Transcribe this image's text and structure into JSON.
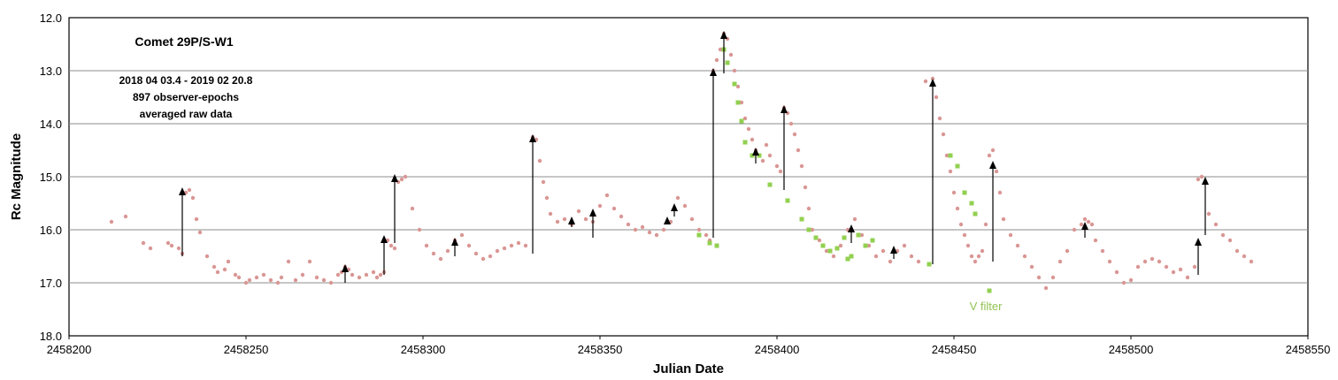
{
  "chart_data": {
    "type": "scatter",
    "xlabel": "Julian Date",
    "ylabel": "Rc Magnitude",
    "xlim": [
      2458200,
      2458550
    ],
    "ylim": [
      12.0,
      18.0
    ],
    "y_inverted": true,
    "grid": "horizontal",
    "x_ticks": [
      "2458200",
      "2458250",
      "2458300",
      "2458350",
      "2458400",
      "2458450",
      "2458500",
      "2458550"
    ],
    "y_ticks": [
      "12.0",
      "13.0",
      "14.0",
      "15.0",
      "16.0",
      "17.0",
      "18.0"
    ],
    "annotations": {
      "title": "Comet 29P/S-W1",
      "line1": "2018 04 03.4 -  2019 02 20.8",
      "line2": "897 observer-epochs",
      "line3": "averaged raw data",
      "vfilter": "V filter"
    },
    "colors": {
      "rc_points": "#d99694",
      "v_points": "#92d050",
      "arrows": "#000000"
    },
    "series": [
      {
        "label_shown": false,
        "marker": "dot",
        "x": [
          2458212,
          2458216,
          2458221,
          2458223,
          2458228,
          2458229,
          2458231,
          2458232,
          2458233,
          2458234,
          2458235,
          2458236,
          2458237,
          2458239,
          2458241,
          2458242,
          2458244,
          2458245,
          2458247,
          2458248,
          2458250,
          2458251,
          2458253,
          2458255,
          2458257,
          2458259,
          2458260,
          2458262,
          2458264,
          2458266,
          2458268,
          2458270,
          2458272,
          2458274,
          2458276,
          2458277,
          2458278,
          2458279,
          2458280,
          2458282,
          2458284,
          2458286,
          2458287,
          2458288,
          2458289,
          2458290,
          2458291,
          2458292,
          2458293,
          2458294,
          2458295,
          2458297,
          2458299,
          2458301,
          2458303,
          2458305,
          2458307,
          2458309,
          2458311,
          2458313,
          2458315,
          2458317,
          2458319,
          2458321,
          2458323,
          2458325,
          2458327,
          2458329,
          2458331,
          2458332,
          2458333,
          2458334,
          2458335,
          2458336,
          2458338,
          2458340,
          2458342,
          2458344,
          2458346,
          2458348,
          2458350,
          2458352,
          2458354,
          2458356,
          2458358,
          2458360,
          2458362,
          2458364,
          2458366,
          2458368,
          2458370,
          2458372,
          2458374,
          2458376,
          2458378,
          2458380,
          2458381,
          2458382,
          2458383,
          2458384,
          2458385,
          2458386,
          2458387,
          2458388,
          2458389,
          2458390,
          2458391,
          2458392,
          2458393,
          2458394,
          2458395,
          2458396,
          2458397,
          2458398,
          2458400,
          2458401,
          2458402,
          2458403,
          2458404,
          2458405,
          2458406,
          2458407,
          2458408,
          2458409,
          2458410,
          2458412,
          2458414,
          2458416,
          2458418,
          2458420,
          2458422,
          2458424,
          2458426,
          2458428,
          2458430,
          2458432,
          2458434,
          2458436,
          2458438,
          2458440,
          2458442,
          2458444,
          2458445,
          2458446,
          2458447,
          2458448,
          2458449,
          2458450,
          2458451,
          2458452,
          2458453,
          2458454,
          2458455,
          2458456,
          2458457,
          2458458,
          2458459,
          2458460,
          2458461,
          2458462,
          2458463,
          2458464,
          2458466,
          2458468,
          2458470,
          2458472,
          2458474,
          2458476,
          2458478,
          2458480,
          2458482,
          2458484,
          2458486,
          2458487,
          2458488,
          2458489,
          2458490,
          2458492,
          2458494,
          2458496,
          2458498,
          2458500,
          2458502,
          2458504,
          2458506,
          2458508,
          2458510,
          2458512,
          2458514,
          2458516,
          2458518,
          2458519,
          2458520,
          2458521,
          2458522,
          2458524,
          2458526,
          2458528,
          2458530,
          2458532,
          2458534
        ],
        "y": [
          15.85,
          15.75,
          16.25,
          16.35,
          16.25,
          16.3,
          16.35,
          16.45,
          15.3,
          15.25,
          15.4,
          15.8,
          16.05,
          16.5,
          16.7,
          16.8,
          16.75,
          16.6,
          16.85,
          16.9,
          17.0,
          16.95,
          16.9,
          16.85,
          16.95,
          17.0,
          16.9,
          16.6,
          16.95,
          16.85,
          16.6,
          16.9,
          16.95,
          17.0,
          16.85,
          16.8,
          16.7,
          16.75,
          16.85,
          16.9,
          16.85,
          16.8,
          16.9,
          16.85,
          16.8,
          16.2,
          16.3,
          16.35,
          15.1,
          15.05,
          15.0,
          15.6,
          16.0,
          16.3,
          16.45,
          16.55,
          16.4,
          16.2,
          16.1,
          16.3,
          16.45,
          16.55,
          16.5,
          16.4,
          16.35,
          16.3,
          16.25,
          16.3,
          14.25,
          14.3,
          14.7,
          15.1,
          15.4,
          15.7,
          15.85,
          15.8,
          15.9,
          15.65,
          15.8,
          15.85,
          15.55,
          15.35,
          15.6,
          15.75,
          15.9,
          16.0,
          15.95,
          16.05,
          16.1,
          16.0,
          15.85,
          15.4,
          15.55,
          15.8,
          16.0,
          16.1,
          16.2,
          13.0,
          12.8,
          12.6,
          12.3,
          12.4,
          12.7,
          13.0,
          13.3,
          13.6,
          13.9,
          14.1,
          14.3,
          14.5,
          14.6,
          14.7,
          14.4,
          14.6,
          14.8,
          14.9,
          13.7,
          13.8,
          14.0,
          14.2,
          14.5,
          14.8,
          15.2,
          15.6,
          16.0,
          16.2,
          16.4,
          16.5,
          16.3,
          16.0,
          15.8,
          16.1,
          16.3,
          16.5,
          16.4,
          16.6,
          16.4,
          16.3,
          16.5,
          16.6,
          13.2,
          13.15,
          13.5,
          13.9,
          14.2,
          14.6,
          14.9,
          15.3,
          15.6,
          15.9,
          16.1,
          16.3,
          16.5,
          16.6,
          16.5,
          16.4,
          15.9,
          14.6,
          14.5,
          14.9,
          15.3,
          15.8,
          16.1,
          16.3,
          16.5,
          16.7,
          16.9,
          17.1,
          16.9,
          16.6,
          16.4,
          16.0,
          15.9,
          15.8,
          15.85,
          15.9,
          16.2,
          16.4,
          16.6,
          16.8,
          17.0,
          16.95,
          16.7,
          16.6,
          16.55,
          16.6,
          16.7,
          16.8,
          16.75,
          16.9,
          16.7,
          15.05,
          15.0,
          15.1,
          15.7,
          15.9,
          16.1,
          16.2,
          16.4,
          16.5,
          16.6
        ]
      },
      {
        "name": "V filter",
        "marker": "square",
        "x": [
          2458378,
          2458381,
          2458383,
          2458385,
          2458386,
          2458388,
          2458389,
          2458390,
          2458391,
          2458393,
          2458395,
          2458398,
          2458403,
          2458407,
          2458409,
          2458411,
          2458413,
          2458415,
          2458417,
          2458419,
          2458420,
          2458421,
          2458423,
          2458425,
          2458427,
          2458443,
          2458449,
          2458451,
          2458453,
          2458455,
          2458456,
          2458460
        ],
        "y": [
          16.1,
          16.25,
          16.3,
          12.6,
          12.85,
          13.25,
          13.6,
          13.95,
          14.35,
          14.6,
          14.6,
          15.15,
          15.45,
          15.8,
          16.0,
          16.15,
          16.3,
          16.4,
          16.35,
          16.15,
          16.55,
          16.5,
          16.1,
          16.3,
          16.2,
          16.65,
          14.6,
          14.8,
          15.3,
          15.5,
          15.7,
          17.15
        ]
      }
    ],
    "outbursts": [
      {
        "x": 2458232,
        "from": 16.5,
        "to": 15.2
      },
      {
        "x": 2458278,
        "from": 17.0,
        "to": 16.65
      },
      {
        "x": 2458289,
        "from": 16.85,
        "to": 16.1
      },
      {
        "x": 2458292,
        "from": 16.25,
        "to": 14.95
      },
      {
        "x": 2458309,
        "from": 16.5,
        "to": 16.15
      },
      {
        "x": 2458331,
        "from": 16.45,
        "to": 14.2
      },
      {
        "x": 2458342,
        "from": 15.95,
        "to": 15.75
      },
      {
        "x": 2458348,
        "from": 16.15,
        "to": 15.6
      },
      {
        "x": 2458369,
        "from": 15.9,
        "to": 15.75
      },
      {
        "x": 2458371,
        "from": 15.75,
        "to": 15.5
      },
      {
        "x": 2458382,
        "from": 16.15,
        "to": 12.95
      },
      {
        "x": 2458385,
        "from": 13.05,
        "to": 12.25
      },
      {
        "x": 2458394,
        "from": 14.75,
        "to": 14.45
      },
      {
        "x": 2458402,
        "from": 15.25,
        "to": 13.65
      },
      {
        "x": 2458421,
        "from": 16.25,
        "to": 15.9
      },
      {
        "x": 2458433,
        "from": 16.55,
        "to": 16.3
      },
      {
        "x": 2458444,
        "from": 16.65,
        "to": 13.15
      },
      {
        "x": 2458461,
        "from": 16.6,
        "to": 14.7
      },
      {
        "x": 2458487,
        "from": 16.15,
        "to": 15.85
      },
      {
        "x": 2458519,
        "from": 16.85,
        "to": 16.15
      },
      {
        "x": 2458521,
        "from": 16.1,
        "to": 15.0
      }
    ]
  }
}
